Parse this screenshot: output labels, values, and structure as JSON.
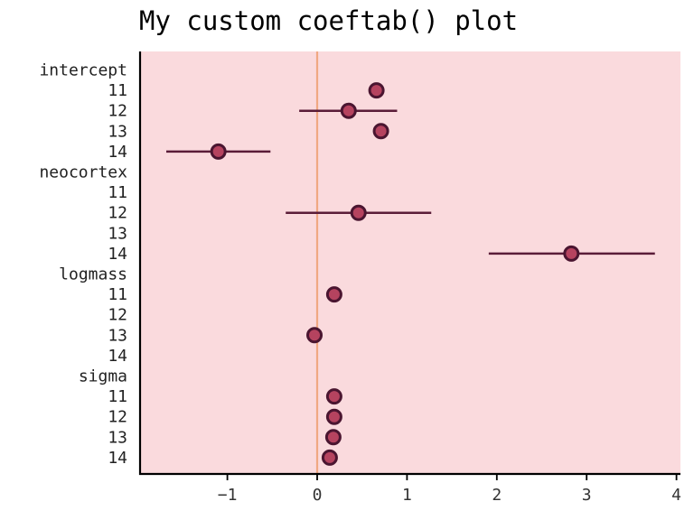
{
  "chart_data": {
    "type": "scatter",
    "title": "My custom coeftab() plot",
    "xlabel": "",
    "ylabel": "",
    "xlim": [
      -2.0,
      4.05
    ],
    "x_ticks": [
      -1,
      0,
      1,
      2,
      3,
      4
    ],
    "x_tick_labels": [
      "−1",
      "0",
      "1",
      "2",
      "3",
      "4"
    ],
    "reference_line_x": 0,
    "grid": false,
    "colors": {
      "panel_background": "#fadadd",
      "point_fill": "#b5435f",
      "point_stroke": "#4a1530",
      "interval_line": "#5a1c38",
      "reference_line": "#f0a882",
      "axis": "#000000"
    },
    "rows": [
      {
        "label": "intercept",
        "kind": "group"
      },
      {
        "label": "11",
        "kind": "model",
        "group": "intercept",
        "estimate": 0.66
      },
      {
        "label": "12",
        "kind": "model",
        "group": "intercept",
        "estimate": 0.35,
        "lower": -0.2,
        "upper": 0.89
      },
      {
        "label": "13",
        "kind": "model",
        "group": "intercept",
        "estimate": 0.71
      },
      {
        "label": "14",
        "kind": "model",
        "group": "intercept",
        "estimate": -1.1,
        "lower": -1.68,
        "upper": -0.52
      },
      {
        "label": "neocortex",
        "kind": "group"
      },
      {
        "label": "11",
        "kind": "model",
        "group": "neocortex"
      },
      {
        "label": "12",
        "kind": "model",
        "group": "neocortex",
        "estimate": 0.46,
        "lower": -0.35,
        "upper": 1.27
      },
      {
        "label": "13",
        "kind": "model",
        "group": "neocortex"
      },
      {
        "label": "14",
        "kind": "model",
        "group": "neocortex",
        "estimate": 2.83,
        "lower": 1.91,
        "upper": 3.76
      },
      {
        "label": "logmass",
        "kind": "group"
      },
      {
        "label": "11",
        "kind": "model",
        "group": "logmass",
        "estimate": 0.19
      },
      {
        "label": "12",
        "kind": "model",
        "group": "logmass"
      },
      {
        "label": "13",
        "kind": "model",
        "group": "logmass",
        "estimate": -0.03
      },
      {
        "label": "14",
        "kind": "model",
        "group": "logmass"
      },
      {
        "label": "sigma",
        "kind": "group"
      },
      {
        "label": "11",
        "kind": "model",
        "group": "sigma",
        "estimate": 0.19
      },
      {
        "label": "12",
        "kind": "model",
        "group": "sigma",
        "estimate": 0.19
      },
      {
        "label": "13",
        "kind": "model",
        "group": "sigma",
        "estimate": 0.18
      },
      {
        "label": "14",
        "kind": "model",
        "group": "sigma",
        "estimate": 0.14
      }
    ]
  }
}
